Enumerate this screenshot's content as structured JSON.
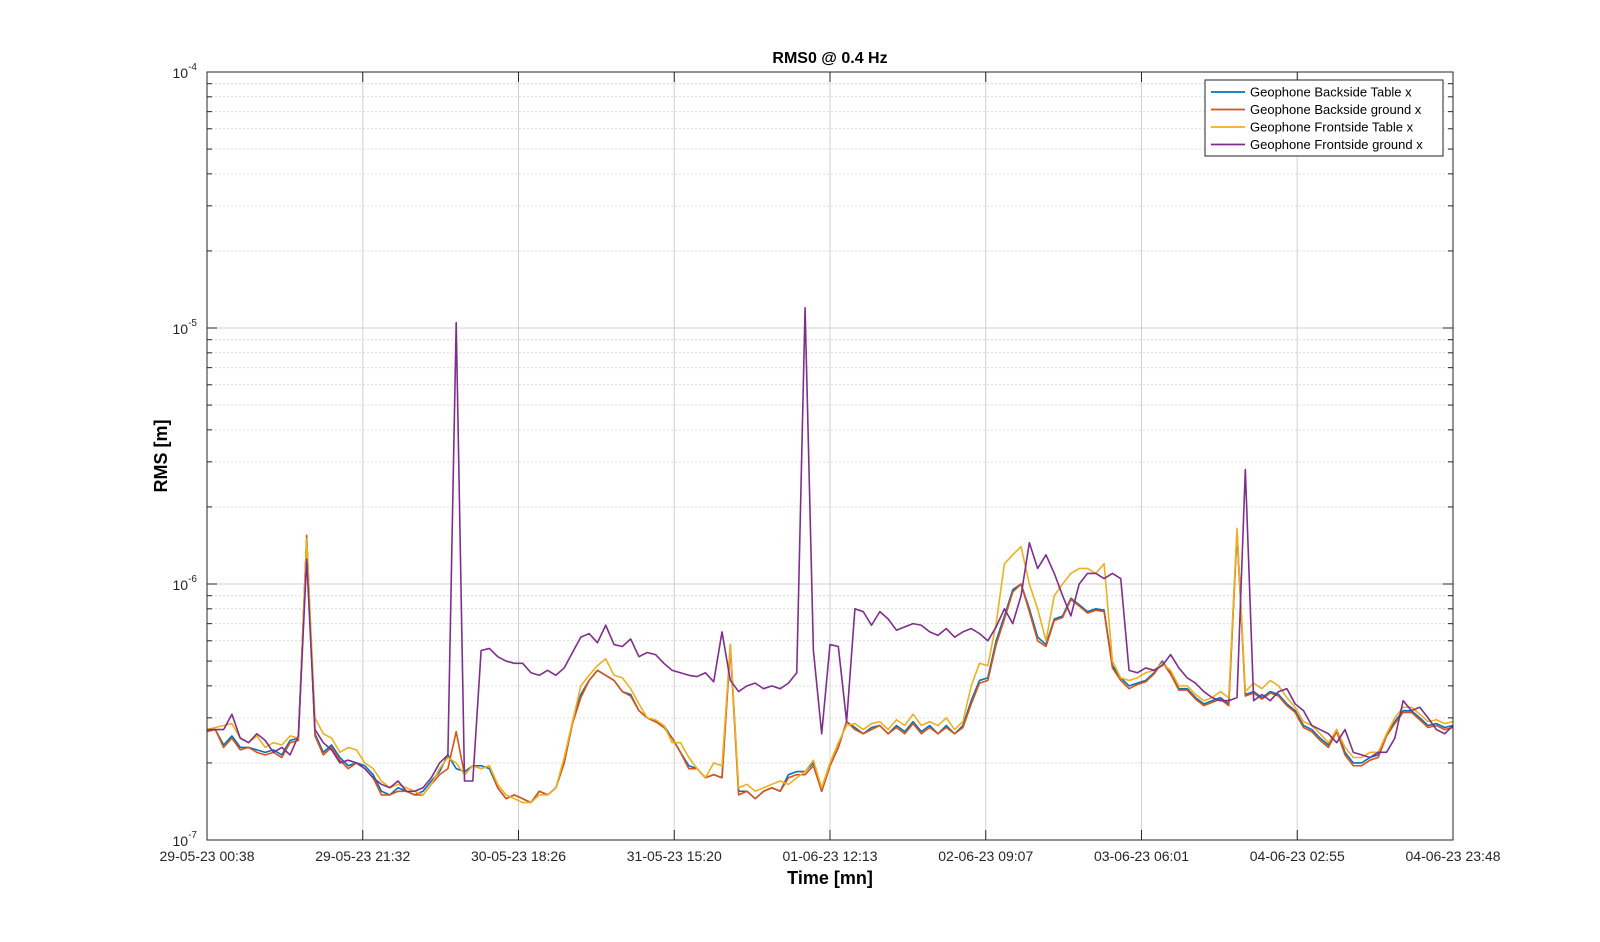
{
  "chart_data": {
    "type": "line",
    "title": "RMS0 @ 0.4 Hz",
    "xlabel": "Time [mn]",
    "ylabel": "RMS [m]",
    "yscale": "log",
    "ylim": [
      1e-07,
      0.0001
    ],
    "xlim": [
      0,
      142
    ],
    "grid": true,
    "legend_position": "top-right",
    "x_ticks": [
      {
        "x": 0,
        "label": "29-05-23 00:38"
      },
      {
        "x": 17.75,
        "label": "29-05-23 21:32"
      },
      {
        "x": 35.5,
        "label": "30-05-23 18:26"
      },
      {
        "x": 53.25,
        "label": "31-05-23 15:20"
      },
      {
        "x": 71,
        "label": "01-06-23 12:13"
      },
      {
        "x": 88.75,
        "label": "02-06-23 09:07"
      },
      {
        "x": 106.5,
        "label": "03-06-23 06:01"
      },
      {
        "x": 124.25,
        "label": "04-06-23 02:55"
      },
      {
        "x": 142,
        "label": "04-06-23 23:48"
      }
    ],
    "y_ticks": [
      {
        "y": 1e-07,
        "base": "10",
        "exp": "-7"
      },
      {
        "y": 1e-06,
        "base": "10",
        "exp": "-6"
      },
      {
        "y": 1e-05,
        "base": "10",
        "exp": "-5"
      },
      {
        "y": 0.0001,
        "base": "10",
        "exp": "-4"
      }
    ],
    "series": [
      {
        "name": "Geophone Backside Table x",
        "color": "#0072BD",
        "values": [
          2.7e-07,
          2.7e-07,
          2.35e-07,
          2.55e-07,
          2.3e-07,
          2.3e-07,
          2.25e-07,
          2.2e-07,
          2.25e-07,
          2.15e-07,
          2.45e-07,
          2.5e-07,
          1.5e-06,
          2.6e-07,
          2.2e-07,
          2.35e-07,
          2.1e-07,
          1.95e-07,
          2e-07,
          1.95e-07,
          1.8e-07,
          1.55e-07,
          1.5e-07,
          1.6e-07,
          1.55e-07,
          1.5e-07,
          1.55e-07,
          1.7e-07,
          1.85e-07,
          2.15e-07,
          1.9e-07,
          1.85e-07,
          1.95e-07,
          1.95e-07,
          1.9e-07,
          1.6e-07,
          1.45e-07,
          1.5e-07,
          1.45e-07,
          1.4e-07,
          1.55e-07,
          1.5e-07,
          1.6e-07,
          2e-07,
          2.9e-07,
          3.7e-07,
          4.2e-07,
          4.6e-07,
          4.4e-07,
          4.2e-07,
          3.8e-07,
          3.7e-07,
          3.2e-07,
          3e-07,
          2.9e-07,
          2.8e-07,
          2.5e-07,
          2.2e-07,
          1.95e-07,
          1.9e-07,
          1.75e-07,
          1.8e-07,
          1.75e-07,
          5.8e-07,
          1.55e-07,
          1.55e-07,
          1.45e-07,
          1.55e-07,
          1.6e-07,
          1.55e-07,
          1.8e-07,
          1.85e-07,
          1.85e-07,
          2e-07,
          1.55e-07,
          1.95e-07,
          2.3e-07,
          2.9e-07,
          2.75e-07,
          2.6e-07,
          2.75e-07,
          2.8e-07,
          2.6e-07,
          2.8e-07,
          2.65e-07,
          2.9e-07,
          2.65e-07,
          2.8e-07,
          2.6e-07,
          2.8e-07,
          2.6e-07,
          2.8e-07,
          3.5e-07,
          4.2e-07,
          4.3e-07,
          6e-07,
          7.5e-07,
          9.5e-07,
          1e-06,
          8e-07,
          6.2e-07,
          5.8e-07,
          7.3e-07,
          7.5e-07,
          8.8e-07,
          8.3e-07,
          7.8e-07,
          8e-07,
          7.9e-07,
          4.8e-07,
          4.3e-07,
          4e-07,
          4.1e-07,
          4.2e-07,
          4.5e-07,
          5e-07,
          4.5e-07,
          3.9e-07,
          3.9e-07,
          3.6e-07,
          3.4e-07,
          3.5e-07,
          3.6e-07,
          3.4e-07,
          1.6e-06,
          3.7e-07,
          3.8e-07,
          3.6e-07,
          3.8e-07,
          3.7e-07,
          3.4e-07,
          3.2e-07,
          2.8e-07,
          2.7e-07,
          2.5e-07,
          2.35e-07,
          2.7e-07,
          2.2e-07,
          2e-07,
          2e-07,
          2.1e-07,
          2.15e-07,
          2.6e-07,
          2.9e-07,
          3.2e-07,
          3.2e-07,
          3e-07,
          2.8e-07,
          2.85e-07,
          2.75e-07,
          2.8e-07
        ]
      },
      {
        "name": "Geophone Backside ground x",
        "color": "#D95319",
        "values": [
          2.65e-07,
          2.7e-07,
          2.3e-07,
          2.5e-07,
          2.25e-07,
          2.3e-07,
          2.2e-07,
          2.15e-07,
          2.2e-07,
          2.1e-07,
          2.4e-07,
          2.45e-07,
          1.55e-06,
          2.55e-07,
          2.15e-07,
          2.3e-07,
          2.05e-07,
          1.9e-07,
          2e-07,
          1.9e-07,
          1.75e-07,
          1.5e-07,
          1.5e-07,
          1.55e-07,
          1.55e-07,
          1.5e-07,
          1.5e-07,
          1.65e-07,
          1.8e-07,
          1.9e-07,
          2.65e-07,
          1.8e-07,
          1.95e-07,
          1.9e-07,
          1.95e-07,
          1.6e-07,
          1.45e-07,
          1.5e-07,
          1.45e-07,
          1.4e-07,
          1.55e-07,
          1.5e-07,
          1.6e-07,
          2e-07,
          2.85e-07,
          3.6e-07,
          4.2e-07,
          4.6e-07,
          4.4e-07,
          4.2e-07,
          3.8e-07,
          3.65e-07,
          3.2e-07,
          3e-07,
          2.9e-07,
          2.75e-07,
          2.5e-07,
          2.2e-07,
          1.9e-07,
          1.9e-07,
          1.75e-07,
          1.8e-07,
          1.75e-07,
          5.6e-07,
          1.5e-07,
          1.55e-07,
          1.45e-07,
          1.55e-07,
          1.6e-07,
          1.55e-07,
          1.75e-07,
          1.8e-07,
          1.8e-07,
          1.95e-07,
          1.55e-07,
          1.95e-07,
          2.3e-07,
          2.9e-07,
          2.7e-07,
          2.6e-07,
          2.7e-07,
          2.8e-07,
          2.6e-07,
          2.75e-07,
          2.6e-07,
          2.85e-07,
          2.6e-07,
          2.75e-07,
          2.6e-07,
          2.75e-07,
          2.6e-07,
          2.75e-07,
          3.4e-07,
          4.1e-07,
          4.2e-07,
          5.8e-07,
          7.3e-07,
          9.3e-07,
          1e-06,
          7.8e-07,
          6e-07,
          5.7e-07,
          7.2e-07,
          7.4e-07,
          8.7e-07,
          8.2e-07,
          7.7e-07,
          7.9e-07,
          7.8e-07,
          4.7e-07,
          4.2e-07,
          3.9e-07,
          4.05e-07,
          4.15e-07,
          4.45e-07,
          4.95e-07,
          4.45e-07,
          3.85e-07,
          3.85e-07,
          3.55e-07,
          3.35e-07,
          3.45e-07,
          3.55e-07,
          3.35e-07,
          1.6e-06,
          3.65e-07,
          3.75e-07,
          3.55e-07,
          3.75e-07,
          3.65e-07,
          3.35e-07,
          3.15e-07,
          2.75e-07,
          2.65e-07,
          2.45e-07,
          2.3e-07,
          2.65e-07,
          2.15e-07,
          1.95e-07,
          1.95e-07,
          2.05e-07,
          2.1e-07,
          2.55e-07,
          2.85e-07,
          3.15e-07,
          3.15e-07,
          2.95e-07,
          2.75e-07,
          2.8e-07,
          2.7e-07,
          2.75e-07
        ]
      },
      {
        "name": "Geophone Frontside Table x",
        "color": "#EDB120",
        "values": [
          2.7e-07,
          2.75e-07,
          2.8e-07,
          2.85e-07,
          2.5e-07,
          2.4e-07,
          2.55e-07,
          2.3e-07,
          2.4e-07,
          2.35e-07,
          2.55e-07,
          2.5e-07,
          1.5e-06,
          3e-07,
          2.6e-07,
          2.5e-07,
          2.2e-07,
          2.3e-07,
          2.25e-07,
          2e-07,
          1.9e-07,
          1.7e-07,
          1.6e-07,
          1.65e-07,
          1.6e-07,
          1.55e-07,
          1.5e-07,
          1.65e-07,
          1.9e-07,
          2.1e-07,
          2e-07,
          1.8e-07,
          1.95e-07,
          1.9e-07,
          1.95e-07,
          1.65e-07,
          1.5e-07,
          1.45e-07,
          1.4e-07,
          1.4e-07,
          1.5e-07,
          1.5e-07,
          1.6e-07,
          2.1e-07,
          2.9e-07,
          4e-07,
          4.4e-07,
          4.8e-07,
          5.1e-07,
          4.4e-07,
          4.3e-07,
          3.9e-07,
          3.4e-07,
          3e-07,
          2.95e-07,
          2.8e-07,
          2.4e-07,
          2.4e-07,
          2.1e-07,
          1.9e-07,
          1.75e-07,
          2e-07,
          1.95e-07,
          5.8e-07,
          1.6e-07,
          1.65e-07,
          1.55e-07,
          1.6e-07,
          1.65e-07,
          1.7e-07,
          1.65e-07,
          1.75e-07,
          1.85e-07,
          2.05e-07,
          1.6e-07,
          2e-07,
          2.4e-07,
          2.8e-07,
          2.85e-07,
          2.7e-07,
          2.85e-07,
          2.9e-07,
          2.7e-07,
          2.95e-07,
          2.8e-07,
          3.1e-07,
          2.8e-07,
          2.9e-07,
          2.8e-07,
          3e-07,
          2.7e-07,
          2.9e-07,
          4e-07,
          4.9e-07,
          4.8e-07,
          7e-07,
          1.2e-06,
          1.3e-06,
          1.4e-06,
          1e-06,
          8e-07,
          6e-07,
          9e-07,
          1e-06,
          1.1e-06,
          1.15e-06,
          1.15e-06,
          1.1e-06,
          1.2e-06,
          5e-07,
          4.3e-07,
          4.2e-07,
          4.3e-07,
          4.5e-07,
          4.6e-07,
          4.9e-07,
          4.6e-07,
          4e-07,
          4e-07,
          3.7e-07,
          3.5e-07,
          3.6e-07,
          3.8e-07,
          3.6e-07,
          1.65e-06,
          3.8e-07,
          4.1e-07,
          3.9e-07,
          4.2e-07,
          4e-07,
          3.6e-07,
          3.3e-07,
          2.9e-07,
          2.8e-07,
          2.6e-07,
          2.4e-07,
          2.7e-07,
          2.3e-07,
          2.1e-07,
          2.1e-07,
          2.2e-07,
          2.2e-07,
          2.6e-07,
          3e-07,
          3.3e-07,
          3.3e-07,
          3.1e-07,
          2.9e-07,
          2.95e-07,
          2.85e-07,
          2.9e-07
        ]
      },
      {
        "name": "Geophone Frontside ground x",
        "color": "#7E2F8E",
        "values": [
          2.7e-07,
          2.7e-07,
          2.7e-07,
          3.1e-07,
          2.5e-07,
          2.4e-07,
          2.6e-07,
          2.45e-07,
          2.2e-07,
          2.3e-07,
          2.15e-07,
          2.55e-07,
          1.25e-06,
          2.7e-07,
          2.4e-07,
          2.25e-07,
          2e-07,
          2.05e-07,
          2e-07,
          1.9e-07,
          1.75e-07,
          1.65e-07,
          1.6e-07,
          1.7e-07,
          1.55e-07,
          1.55e-07,
          1.6e-07,
          1.75e-07,
          2e-07,
          2.15e-07,
          1.05e-05,
          1.7e-07,
          1.7e-07,
          5.5e-07,
          5.6e-07,
          5.2e-07,
          5e-07,
          4.9e-07,
          4.9e-07,
          4.5e-07,
          4.4e-07,
          4.6e-07,
          4.4e-07,
          4.7e-07,
          5.4e-07,
          6.2e-07,
          6.4e-07,
          5.9e-07,
          6.9e-07,
          5.8e-07,
          5.7e-07,
          6.1e-07,
          5.2e-07,
          5.4e-07,
          5.3e-07,
          4.9e-07,
          4.6e-07,
          4.5e-07,
          4.4e-07,
          4.35e-07,
          4.5e-07,
          4.15e-07,
          6.5e-07,
          4.2e-07,
          3.8e-07,
          4e-07,
          4.1e-07,
          3.9e-07,
          4e-07,
          3.9e-07,
          4.1e-07,
          4.5e-07,
          1.2e-05,
          5.5e-07,
          2.6e-07,
          5.8e-07,
          5.7e-07,
          2.9e-07,
          8e-07,
          7.8e-07,
          6.9e-07,
          7.8e-07,
          7.3e-07,
          6.6e-07,
          6.8e-07,
          7e-07,
          6.9e-07,
          6.5e-07,
          6.3e-07,
          6.7e-07,
          6.2e-07,
          6.5e-07,
          6.7e-07,
          6.4e-07,
          6e-07,
          6.8e-07,
          8e-07,
          7e-07,
          9e-07,
          1.45e-06,
          1.15e-06,
          1.3e-06,
          1.1e-06,
          9e-07,
          7.5e-07,
          1e-06,
          1.1e-06,
          1.1e-06,
          1.05e-06,
          1.1e-06,
          1.05e-06,
          4.6e-07,
          4.5e-07,
          4.7e-07,
          4.6e-07,
          4.8e-07,
          5.3e-07,
          4.7e-07,
          4.3e-07,
          4.1e-07,
          3.8e-07,
          3.6e-07,
          3.5e-07,
          3.5e-07,
          3.6e-07,
          2.8e-06,
          3.5e-07,
          3.7e-07,
          3.5e-07,
          3.8e-07,
          3.9e-07,
          3.4e-07,
          3.2e-07,
          2.8e-07,
          2.7e-07,
          2.6e-07,
          2.4e-07,
          2.7e-07,
          2.2e-07,
          2.15e-07,
          2.1e-07,
          2.2e-07,
          2.2e-07,
          2.5e-07,
          3.5e-07,
          3.2e-07,
          3.3e-07,
          3e-07,
          2.7e-07,
          2.6e-07,
          2.8e-07
        ]
      }
    ]
  }
}
